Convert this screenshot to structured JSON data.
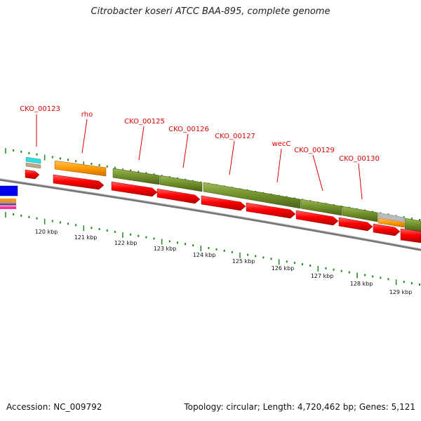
{
  "title": "Citrobacter koseri ATCC BAA-895, complete genome",
  "footer": {
    "accession": "Accession: NC_009792",
    "topology": "Topology: circular; Length: 4,720,462 bp; Genes: 5,121"
  },
  "colors": {
    "gene_label": "#dd0000",
    "cds_forward": "#ff0000",
    "cds_reverse": "#ee0000",
    "orthologous": "#6f8f2a",
    "orange_feature": "#ff9900",
    "tick": "#1a8a1a",
    "backbone": "#888888"
  },
  "gene_labels": [
    {
      "name": "CKO_00123",
      "position_bp": 119480
    },
    {
      "name": "rho",
      "position_bp": 120400
    },
    {
      "name": "CKO_00125",
      "position_bp": 122300
    },
    {
      "name": "CKO_00126",
      "position_bp": 123280
    },
    {
      "name": "CKO_00127",
      "position_bp": 124340
    },
    {
      "name": "wecC",
      "position_bp": 125650
    },
    {
      "name": "CKO_00129",
      "position_bp": 126700
    },
    {
      "name": "CKO_00130",
      "position_bp": 127650
    }
  ],
  "scale_labels": [
    "120 kbp",
    "121 kbp",
    "122 kbp",
    "123 kbp",
    "124 kbp",
    "125 kbp",
    "126 kbp",
    "127 kbp",
    "128 kbp",
    "129 kbp"
  ]
}
